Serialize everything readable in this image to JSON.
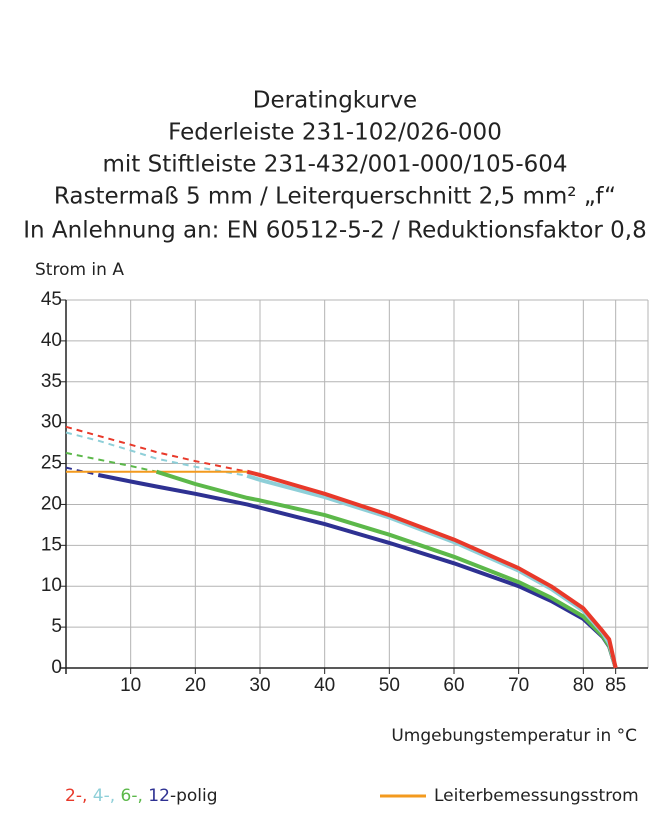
{
  "chart_data": {
    "type": "line",
    "title_lines": [
      "Deratingkurve",
      "Federleiste 231-102/026-000",
      "mit Stiftleiste 231-432/001-000/105-604",
      "Rastermaß 5 mm / Leiterquerschnitt 2,5 mm² „f“",
      "In Anlehnung an: EN 60512-5-2 / Reduktionsfaktor 0,8"
    ],
    "y_label": "Strom in A",
    "x_label": "Umgebungstemperatur in °C",
    "x": [
      0,
      5,
      10,
      14,
      20,
      28,
      30,
      40,
      50,
      60,
      70,
      75,
      80,
      83,
      84,
      85
    ],
    "series": [
      {
        "name": "2-,",
        "color": "#e8392a",
        "values": [
          null,
          null,
          null,
          null,
          null,
          24,
          23.6,
          21.3,
          18.7,
          15.7,
          12.2,
          10,
          7.3,
          4.5,
          3.5,
          0
        ],
        "dashed_values": [
          29.5,
          28.4,
          27.3,
          26.4,
          25.3,
          24,
          null,
          null,
          null,
          null,
          null,
          null,
          null,
          null,
          null,
          null
        ]
      },
      {
        "name": "4-,",
        "color": "#8ecfd8",
        "values": [
          null,
          null,
          null,
          null,
          null,
          23.5,
          23,
          20.9,
          18.4,
          15.4,
          11.9,
          9.7,
          7,
          4.3,
          3,
          0
        ],
        "dashed_values": [
          28.8,
          27.8,
          26.6,
          25.6,
          24.6,
          23.5,
          null,
          null,
          null,
          null,
          null,
          null,
          null,
          null,
          null,
          null
        ]
      },
      {
        "name": "6-,",
        "color": "#5cb84a",
        "values": [
          null,
          null,
          null,
          24,
          22.5,
          20.8,
          20.5,
          18.7,
          16.3,
          13.6,
          10.5,
          8.6,
          6.3,
          3.9,
          2.7,
          0
        ],
        "dashed_values": [
          26.3,
          25.5,
          24.7,
          24,
          null,
          null,
          null,
          null,
          null,
          null,
          null,
          null,
          null,
          null,
          null,
          null
        ]
      },
      {
        "name": "12",
        "color": "#2e3192",
        "values": [
          null,
          23.6,
          22.8,
          22.2,
          21.3,
          20,
          19.6,
          17.6,
          15.3,
          12.8,
          10,
          8.2,
          6,
          3.8,
          2.6,
          0
        ],
        "dashed_values": [
          24.5,
          23.6,
          null,
          null,
          null,
          null,
          null,
          null,
          null,
          null,
          null,
          null,
          null,
          null,
          null,
          null
        ]
      },
      {
        "name": "Leiterbemessungsstrom",
        "color": "#f39a1e",
        "legend_position": "right",
        "values": [
          24,
          24,
          24,
          24,
          24,
          24,
          null,
          null,
          null,
          null,
          null,
          null,
          null,
          null,
          null,
          null
        ]
      }
    ],
    "legend_suffix": "-polig",
    "xlim": [
      0,
      90
    ],
    "xticks": [
      10,
      20,
      30,
      40,
      50,
      60,
      70,
      80,
      85
    ],
    "ylim": [
      0,
      45
    ],
    "yticks": [
      0,
      5,
      10,
      15,
      20,
      25,
      30,
      35,
      40,
      45
    ],
    "grid": true
  }
}
